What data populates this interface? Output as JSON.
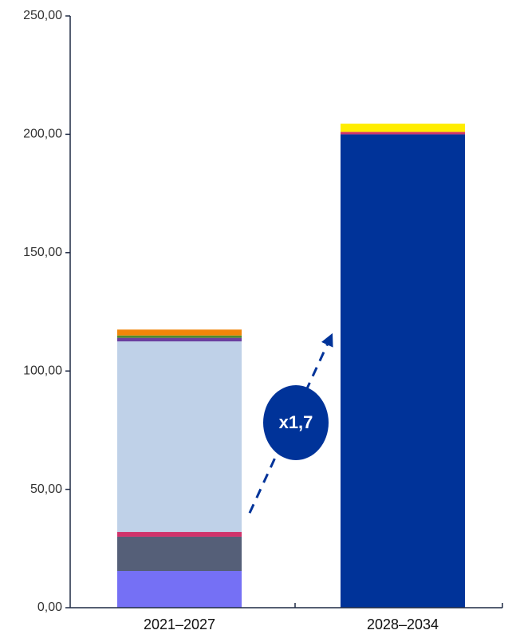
{
  "chart_data": {
    "type": "bar",
    "stacked": true,
    "categories": [
      "2021–2027",
      "2028–2034"
    ],
    "ylim": [
      0,
      250
    ],
    "yticks": [
      "0,00",
      "50,00",
      "100,00",
      "150,00",
      "200,00",
      "250,00"
    ],
    "ytick_values": [
      0,
      50,
      100,
      150,
      200,
      250
    ],
    "grid": false,
    "series": [
      {
        "color": "#7570f5",
        "values": [
          15.5,
          0
        ]
      },
      {
        "color": "#555f78",
        "values": [
          14.5,
          0
        ]
      },
      {
        "color": "#d0336b",
        "values": [
          2,
          0
        ]
      },
      {
        "color": "#bfd1e8",
        "values": [
          80.5,
          0
        ]
      },
      {
        "color": "#6a3fa0",
        "values": [
          1.5,
          0
        ]
      },
      {
        "color": "#4e8c2f",
        "values": [
          1,
          0
        ]
      },
      {
        "color": "#f0860a",
        "values": [
          2.5,
          0
        ]
      },
      {
        "color": "#003399",
        "values": [
          0,
          200
        ]
      },
      {
        "color": "#d0336b",
        "values": [
          0,
          1
        ]
      },
      {
        "color": "#ffed00",
        "values": [
          0,
          3.5
        ]
      }
    ],
    "annotation": {
      "label": "x1,7",
      "color": "#003399",
      "arrow_from": [
        0.5,
        40
      ],
      "arrow_to": [
        0.5,
        116
      ]
    }
  }
}
